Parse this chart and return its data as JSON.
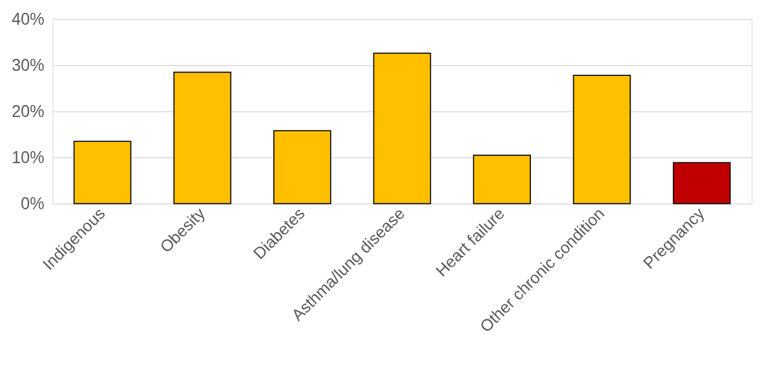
{
  "chart_data": {
    "type": "bar",
    "categories": [
      "Indigenous",
      "Obesity",
      "Diabetes",
      "Asthma/lung disease",
      "Heart failure",
      "Other chronic condition",
      "Pregnancy"
    ],
    "values": [
      13.5,
      28.5,
      15.8,
      32.6,
      10.5,
      27.8,
      8.9
    ],
    "colors": [
      "#ffc000",
      "#ffc000",
      "#ffc000",
      "#ffc000",
      "#ffc000",
      "#ffc000",
      "#c00000"
    ],
    "ylim": [
      0,
      40
    ],
    "yticks": [
      {
        "value": 0,
        "label": "0%"
      },
      {
        "value": 10,
        "label": "10%"
      },
      {
        "value": 20,
        "label": "20%"
      },
      {
        "value": 30,
        "label": "30%"
      },
      {
        "value": 40,
        "label": "40%"
      }
    ],
    "grid": "y"
  }
}
